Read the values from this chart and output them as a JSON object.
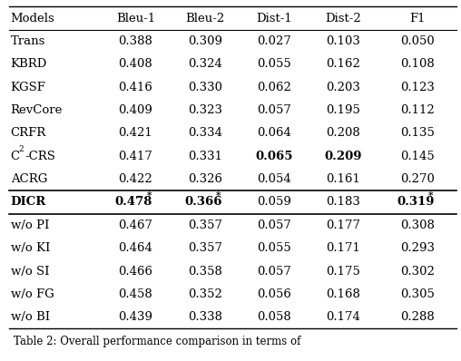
{
  "columns": [
    "Models",
    "Bleu-1",
    "Bleu-2",
    "Dist-1",
    "Dist-2",
    "F1"
  ],
  "rows": [
    {
      "model": "Trans",
      "bleu1": "0.388",
      "bleu2": "0.309",
      "dist1": "0.027",
      "dist2": "0.103",
      "f1": "0.050",
      "bold_model": false,
      "bold_bleu1": false,
      "bold_bleu2": false,
      "bold_dist1": false,
      "bold_dist2": false,
      "bold_f1": false,
      "star_bleu1": false,
      "star_bleu2": false,
      "star_f1": false
    },
    {
      "model": "KBRD",
      "bleu1": "0.408",
      "bleu2": "0.324",
      "dist1": "0.055",
      "dist2": "0.162",
      "f1": "0.108",
      "bold_model": false,
      "bold_bleu1": false,
      "bold_bleu2": false,
      "bold_dist1": false,
      "bold_dist2": false,
      "bold_f1": false,
      "star_bleu1": false,
      "star_bleu2": false,
      "star_f1": false
    },
    {
      "model": "KGSF",
      "bleu1": "0.416",
      "bleu2": "0.330",
      "dist1": "0.062",
      "dist2": "0.203",
      "f1": "0.123",
      "bold_model": false,
      "bold_bleu1": false,
      "bold_bleu2": false,
      "bold_dist1": false,
      "bold_dist2": false,
      "bold_f1": false,
      "star_bleu1": false,
      "star_bleu2": false,
      "star_f1": false
    },
    {
      "model": "RevCore",
      "bleu1": "0.409",
      "bleu2": "0.323",
      "dist1": "0.057",
      "dist2": "0.195",
      "f1": "0.112",
      "bold_model": false,
      "bold_bleu1": false,
      "bold_bleu2": false,
      "bold_dist1": false,
      "bold_dist2": false,
      "bold_f1": false,
      "star_bleu1": false,
      "star_bleu2": false,
      "star_f1": false
    },
    {
      "model": "CRFR",
      "bleu1": "0.421",
      "bleu2": "0.334",
      "dist1": "0.064",
      "dist2": "0.208",
      "f1": "0.135",
      "bold_model": false,
      "bold_bleu1": false,
      "bold_bleu2": false,
      "bold_dist1": false,
      "bold_dist2": false,
      "bold_f1": false,
      "star_bleu1": false,
      "star_bleu2": false,
      "star_f1": false
    },
    {
      "model": "C$^2$-CRS",
      "bleu1": "0.417",
      "bleu2": "0.331",
      "dist1": "0.065",
      "dist2": "0.209",
      "f1": "0.145",
      "bold_model": false,
      "bold_bleu1": false,
      "bold_bleu2": false,
      "bold_dist1": true,
      "bold_dist2": true,
      "bold_f1": false,
      "star_bleu1": false,
      "star_bleu2": false,
      "star_f1": false
    },
    {
      "model": "ACRG",
      "bleu1": "0.422",
      "bleu2": "0.326",
      "dist1": "0.054",
      "dist2": "0.161",
      "f1": "0.270",
      "bold_model": false,
      "bold_bleu1": false,
      "bold_bleu2": false,
      "bold_dist1": false,
      "bold_dist2": false,
      "bold_f1": false,
      "star_bleu1": false,
      "star_bleu2": false,
      "star_f1": false
    },
    {
      "model": "DICR",
      "bleu1": "0.478",
      "bleu2": "0.366",
      "dist1": "0.059",
      "dist2": "0.183",
      "f1": "0.319",
      "bold_model": true,
      "bold_bleu1": true,
      "bold_bleu2": true,
      "bold_dist1": false,
      "bold_dist2": false,
      "bold_f1": true,
      "star_bleu1": true,
      "star_bleu2": true,
      "star_f1": true
    },
    {
      "model": "w/o PI",
      "bleu1": "0.467",
      "bleu2": "0.357",
      "dist1": "0.057",
      "dist2": "0.177",
      "f1": "0.308",
      "bold_model": false,
      "bold_bleu1": false,
      "bold_bleu2": false,
      "bold_dist1": false,
      "bold_dist2": false,
      "bold_f1": false,
      "star_bleu1": false,
      "star_bleu2": false,
      "star_f1": false
    },
    {
      "model": "w/o KI",
      "bleu1": "0.464",
      "bleu2": "0.357",
      "dist1": "0.055",
      "dist2": "0.171",
      "f1": "0.293",
      "bold_model": false,
      "bold_bleu1": false,
      "bold_bleu2": false,
      "bold_dist1": false,
      "bold_dist2": false,
      "bold_f1": false,
      "star_bleu1": false,
      "star_bleu2": false,
      "star_f1": false
    },
    {
      "model": "w/o SI",
      "bleu1": "0.466",
      "bleu2": "0.358",
      "dist1": "0.057",
      "dist2": "0.175",
      "f1": "0.302",
      "bold_model": false,
      "bold_bleu1": false,
      "bold_bleu2": false,
      "bold_dist1": false,
      "bold_dist2": false,
      "bold_f1": false,
      "star_bleu1": false,
      "star_bleu2": false,
      "star_f1": false
    },
    {
      "model": "w/o FG",
      "bleu1": "0.458",
      "bleu2": "0.352",
      "dist1": "0.056",
      "dist2": "0.168",
      "f1": "0.305",
      "bold_model": false,
      "bold_bleu1": false,
      "bold_bleu2": false,
      "bold_dist1": false,
      "bold_dist2": false,
      "bold_f1": false,
      "star_bleu1": false,
      "star_bleu2": false,
      "star_f1": false
    },
    {
      "model": "w/o BI",
      "bleu1": "0.439",
      "bleu2": "0.338",
      "dist1": "0.058",
      "dist2": "0.174",
      "f1": "0.288",
      "bold_model": false,
      "bold_bleu1": false,
      "bold_bleu2": false,
      "bold_dist1": false,
      "bold_dist2": false,
      "bold_f1": false,
      "star_bleu1": false,
      "star_bleu2": false,
      "star_f1": false
    }
  ],
  "dicr_row_index": 7,
  "bg_color": "#ffffff",
  "text_color": "#000000",
  "font_size": 9.5,
  "caption": "Table 2: Overall performance comparison in terms of"
}
